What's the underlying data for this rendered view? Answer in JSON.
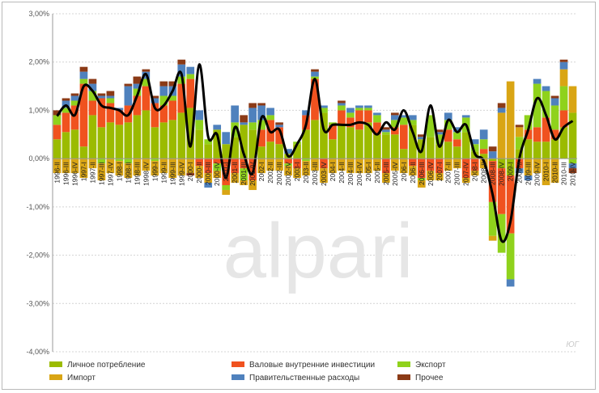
{
  "watermark": "alpari",
  "corner_tag": "ЮГ",
  "colors": {
    "personal_consumption": "#9bbb00",
    "gross_investment": "#f0521f",
    "exports": "#8fd21c",
    "imports": "#d9a514",
    "government": "#4f81bd",
    "other": "#8b3a16",
    "line": "#000000"
  },
  "chart_data": {
    "type": "bar",
    "stacked": true,
    "title": "",
    "xlabel": "",
    "ylabel": "",
    "ylim": [
      -4,
      3
    ],
    "yticks": [
      3,
      2,
      1,
      0,
      -1,
      -2,
      -3,
      -4
    ],
    "ytick_labels": [
      "3,00%",
      "2,00%",
      "1,00%",
      "0,00%",
      "-1,00%",
      "-2,00%",
      "-3,00%",
      "-4,00%"
    ],
    "grid": true,
    "legend_position": "bottom",
    "categories": [
      "1996-II",
      "1996-III",
      "1996-IV",
      "1997-I",
      "1997-II",
      "1997-III",
      "1997-IV",
      "1998-I",
      "1998-II",
      "1998-III",
      "1998-IV",
      "1999-I",
      "1999-II",
      "1999-III",
      "1999-IV",
      "2000-I",
      "2000-II",
      "2000-III",
      "2000-IV",
      "2001-I",
      "2001-II",
      "2001-III",
      "2001-IV",
      "2002-I",
      "2002-II",
      "2002-III",
      "2002-IV",
      "2003-I",
      "2003-II",
      "2003-III",
      "2003-IV",
      "2004-I",
      "2004-II",
      "2004-III",
      "2004-IV",
      "2005-I",
      "2005-II",
      "2005-III",
      "2005-IV",
      "2006-I",
      "2006-II",
      "2006-III",
      "2006-IV",
      "2007-I",
      "2007-II",
      "2007-III",
      "2007-IV",
      "2008-I",
      "2008-II",
      "2008-III",
      "2008-IV",
      "2009-I",
      "2009-II",
      "2009-III",
      "2009-IV",
      "2010-I",
      "2010-II",
      "2010-III",
      "2010-IV"
    ],
    "series": [
      {
        "name": "Личное потребление",
        "color": "#9bbb00",
        "values": [
          0.4,
          0.55,
          0.6,
          0.25,
          0.9,
          0.65,
          0.75,
          0.7,
          0.75,
          0.9,
          1.0,
          0.65,
          0.75,
          0.8,
          0.95,
          1.05,
          0.6,
          0.3,
          0.6,
          0.3,
          0.45,
          0.7,
          0.6,
          0.25,
          0.35,
          0.3,
          0.1,
          0.3,
          0.6,
          0.8,
          0.95,
          0.4,
          0.7,
          0.65,
          0.6,
          0.75,
          0.5,
          0.5,
          0.5,
          0.2,
          0.7,
          0.4,
          0.45,
          0.3,
          0.35,
          0.25,
          0.55,
          0.15,
          0.1,
          -0.05,
          -0.2,
          -0.35,
          0.2,
          0.4,
          0.35,
          0.35,
          0.4,
          0.65,
          0.95
        ]
      },
      {
        "name": "Валовые внутренние инвестиции",
        "color": "#f0521f",
        "values": [
          0.3,
          0.4,
          0.5,
          1.3,
          0.3,
          0.6,
          0.4,
          0.3,
          0.35,
          0.4,
          0.5,
          0.5,
          0.35,
          0.4,
          0.6,
          0.6,
          -0.15,
          -0.3,
          -0.1,
          -0.55,
          -0.3,
          -0.2,
          -0.45,
          0.35,
          0.45,
          0.35,
          -0.1,
          -0.2,
          0.3,
          0.85,
          -0.2,
          0.3,
          0.3,
          0.2,
          0.4,
          0.25,
          0.25,
          -0.3,
          0.15,
          0.5,
          -0.15,
          -0.4,
          -0.25,
          -0.3,
          0.25,
          0.15,
          -0.4,
          -0.25,
          0.1,
          -0.85,
          -0.95,
          -1.2,
          -0.2,
          0.2,
          0.3,
          0.5,
          0.2,
          0.35,
          0.0
        ]
      },
      {
        "name": "Экспорт",
        "color": "#8fd21c",
        "values": [
          0.2,
          0.1,
          0.1,
          0.1,
          0.2,
          -0.1,
          0.1,
          -0.05,
          -0.1,
          0.15,
          0.15,
          -0.05,
          0.2,
          0.1,
          0.15,
          0.1,
          0.2,
          0.1,
          -0.15,
          -0.1,
          0.3,
          -0.25,
          0.15,
          0.2,
          0.1,
          0.0,
          -0.05,
          0.05,
          -0.05,
          0.05,
          0.1,
          0.05,
          0.1,
          0.1,
          0.05,
          0.05,
          0.15,
          0.05,
          0.15,
          0.15,
          0.1,
          -0.05,
          0.45,
          0.2,
          0.2,
          0.15,
          0.3,
          0.15,
          0.2,
          -0.7,
          -0.8,
          -0.95,
          0.25,
          0.3,
          0.9,
          0.55,
          0.5,
          0.5,
          -0.1
        ]
      },
      {
        "name": "Импорт",
        "color": "#d9a514",
        "values": [
          -0.3,
          -0.3,
          -0.3,
          -0.4,
          -0.2,
          -0.35,
          -0.3,
          -0.3,
          -0.3,
          -0.35,
          -0.25,
          -0.3,
          -0.3,
          -0.4,
          -0.35,
          -0.3,
          -0.25,
          -0.2,
          -0.15,
          -0.1,
          -0.2,
          -0.1,
          -0.2,
          -0.3,
          -0.25,
          -0.25,
          -0.2,
          -0.2,
          -0.3,
          -0.25,
          -0.3,
          -0.3,
          -0.25,
          -0.3,
          -0.3,
          -0.3,
          -0.25,
          -0.2,
          -0.25,
          -0.3,
          -0.2,
          -0.15,
          -0.2,
          -0.15,
          -0.25,
          -0.2,
          -0.1,
          -0.1,
          -0.2,
          -0.1,
          0.95,
          1.6,
          0.2,
          -0.35,
          -0.3,
          -0.55,
          -0.5,
          0.35,
          0.55
        ]
      },
      {
        "name": "Правительственные расходы",
        "color": "#4f81bd",
        "values": [
          0.0,
          0.15,
          0.1,
          0.15,
          0.15,
          0.05,
          0.05,
          0.05,
          0.4,
          0.1,
          0.15,
          0.1,
          0.2,
          0.2,
          0.25,
          0.15,
          0.2,
          -0.1,
          0.1,
          0.25,
          0.35,
          0.05,
          0.3,
          0.3,
          0.15,
          0.05,
          0.1,
          0.0,
          0.1,
          0.1,
          0.05,
          0.0,
          0.05,
          0.1,
          0.05,
          0.05,
          0.05,
          0.05,
          0.1,
          0.05,
          0.1,
          0.05,
          0.0,
          0.05,
          0.15,
          0.1,
          0.05,
          0.1,
          0.2,
          0.15,
          0.1,
          -0.15,
          -0.1,
          -0.1,
          0.1,
          0.1,
          0.15,
          0.15,
          -0.1
        ]
      },
      {
        "name": "Прочее",
        "color": "#8b3a16",
        "values": [
          0.1,
          0.05,
          0.05,
          0.1,
          0.1,
          0.05,
          0.1,
          0.0,
          0.05,
          0.15,
          0.05,
          0.05,
          0.1,
          0.1,
          0.1,
          -0.05,
          0.0,
          0.0,
          0.0,
          0.0,
          0.0,
          0.15,
          0.1,
          0.05,
          0.0,
          0.05,
          0.0,
          0.0,
          0.0,
          0.05,
          0.0,
          0.0,
          0.05,
          0.0,
          0.0,
          0.0,
          0.0,
          0.05,
          0.05,
          0.0,
          0.0,
          0.05,
          0.0,
          0.05,
          0.0,
          0.0,
          0.0,
          0.0,
          0.0,
          0.1,
          0.1,
          0.0,
          0.05,
          0.0,
          0.0,
          0.0,
          0.05,
          0.05,
          -0.1
        ]
      }
    ],
    "line": {
      "color": "#000000",
      "values": [
        0.88,
        1.1,
        0.9,
        1.5,
        1.4,
        1.1,
        1.05,
        1.0,
        0.9,
        1.3,
        1.75,
        1.05,
        1.1,
        1.4,
        1.75,
        0.25,
        1.95,
        0.45,
        0.5,
        -0.4,
        0.65,
        0.1,
        -0.3,
        0.85,
        0.55,
        0.6,
        0.05,
        0.3,
        0.7,
        1.65,
        0.6,
        0.7,
        0.7,
        0.7,
        0.75,
        0.7,
        0.5,
        0.75,
        0.6,
        1.0,
        0.55,
        0.15,
        1.1,
        0.25,
        0.8,
        0.55,
        0.7,
        0.1,
        -0.05,
        -0.75,
        -1.7,
        -1.3,
        0.0,
        0.6,
        1.25,
        0.9,
        0.4,
        0.65,
        0.78
      ]
    }
  },
  "legend": [
    {
      "key": "personal_consumption",
      "label": "Личное потребление"
    },
    {
      "key": "gross_investment",
      "label": "Валовые внутренние инвестиции"
    },
    {
      "key": "exports",
      "label": "Экспорт"
    },
    {
      "key": "imports",
      "label": "Импорт"
    },
    {
      "key": "government",
      "label": "Правительственные расходы"
    },
    {
      "key": "other",
      "label": "Прочее"
    }
  ]
}
